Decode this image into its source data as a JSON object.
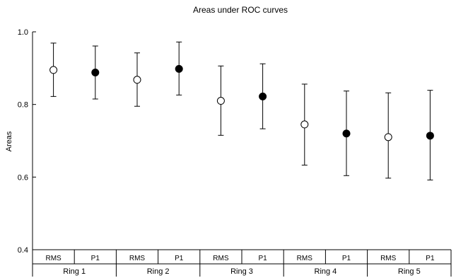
{
  "chart_data": {
    "type": "scatter",
    "title": "Areas under ROC curves",
    "xlabel": "",
    "ylabel": "Areas",
    "ylim": [
      0.4,
      1.0
    ],
    "yticks": [
      "1.0",
      "0.8",
      "0.6",
      "0.4"
    ],
    "ytick_values": [
      1.0,
      0.8,
      0.6,
      0.4
    ],
    "groups": [
      "Ring 1",
      "Ring 2",
      "Ring 3",
      "Ring 4",
      "Ring 5"
    ],
    "categories": [
      "RMS",
      "P1",
      "RMS",
      "P1",
      "RMS",
      "P1",
      "RMS",
      "P1",
      "RMS",
      "P1"
    ],
    "series": [
      {
        "marker": "open-circle",
        "values": [
          0.895,
          0.868,
          0.81,
          0.745,
          0.71
        ],
        "lower": [
          0.822,
          0.795,
          0.715,
          0.633,
          0.597
        ],
        "upper": [
          0.969,
          0.942,
          0.906,
          0.856,
          0.832
        ]
      },
      {
        "marker": "filled-circle",
        "values": [
          0.888,
          0.898,
          0.822,
          0.72,
          0.714
        ],
        "lower": [
          0.815,
          0.826,
          0.733,
          0.604,
          0.592
        ],
        "upper": [
          0.961,
          0.972,
          0.912,
          0.837,
          0.839
        ]
      }
    ],
    "grid": false,
    "legend": "none"
  }
}
